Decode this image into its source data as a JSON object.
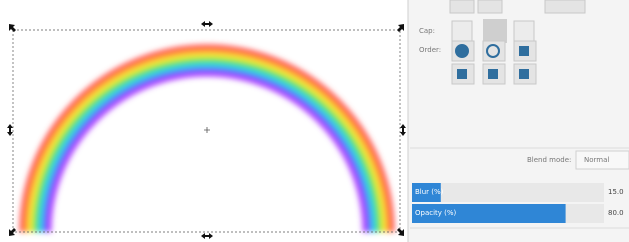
{
  "panel": {
    "cap_label": "Cap:",
    "order_label": "Order:",
    "blend_mode_label": "Blend mode:",
    "blend_mode_value": "Normal",
    "blur": {
      "label": "Blur (%)",
      "value": "15.0"
    },
    "opacity": {
      "label": "Opacity (%)",
      "value": "80.0"
    }
  }
}
